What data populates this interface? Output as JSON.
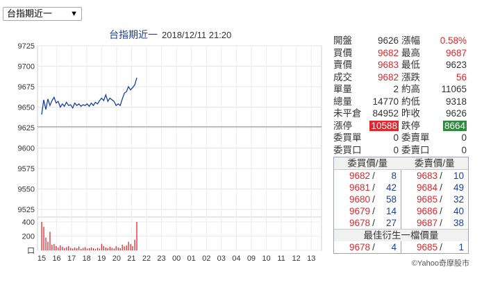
{
  "selector": {
    "value": "台指期近一",
    "arrow": "▼"
  },
  "chart_data": {
    "type": "line",
    "title": "台指期近一",
    "timestamp": "2018/12/11 21:20",
    "y_ticks": [
      "9725",
      "9700",
      "9675",
      "9650",
      "9625",
      "9600",
      "9575",
      "9550",
      "9525"
    ],
    "ylim": [
      9525,
      9725
    ],
    "reference_line": 9626,
    "volume_ticks": [
      "400",
      "200",
      "口"
    ],
    "volume_ylim": [
      0,
      400
    ],
    "x_ticks": [
      "15",
      "16",
      "17",
      "18",
      "19",
      "20",
      "21",
      "22",
      "23",
      "00",
      "01",
      "02",
      "03",
      "04",
      "09",
      "10",
      "11",
      "12",
      "13"
    ],
    "price_series": [
      [
        0,
        9641
      ],
      [
        1,
        9659
      ],
      [
        2,
        9647
      ],
      [
        3,
        9660
      ],
      [
        4,
        9652
      ],
      [
        5,
        9658
      ],
      [
        6,
        9662
      ],
      [
        7,
        9655
      ],
      [
        8,
        9657
      ],
      [
        9,
        9650
      ],
      [
        10,
        9654
      ],
      [
        11,
        9651
      ],
      [
        12,
        9656
      ],
      [
        13,
        9652
      ],
      [
        14,
        9653
      ],
      [
        15,
        9649
      ],
      [
        16,
        9655
      ],
      [
        17,
        9652
      ],
      [
        18,
        9654
      ],
      [
        19,
        9651
      ],
      [
        20,
        9653
      ],
      [
        21,
        9652
      ],
      [
        22,
        9654
      ],
      [
        23,
        9651
      ],
      [
        24,
        9655
      ],
      [
        25,
        9652
      ],
      [
        26,
        9656
      ],
      [
        27,
        9654
      ],
      [
        28,
        9658
      ],
      [
        29,
        9661
      ],
      [
        30,
        9658
      ],
      [
        31,
        9665
      ],
      [
        32,
        9657
      ],
      [
        33,
        9661
      ],
      [
        34,
        9659
      ],
      [
        35,
        9657
      ],
      [
        36,
        9652
      ],
      [
        37,
        9654
      ],
      [
        38,
        9652
      ],
      [
        39,
        9660
      ],
      [
        40,
        9667
      ],
      [
        41,
        9669
      ],
      [
        42,
        9675
      ],
      [
        43,
        9671
      ],
      [
        44,
        9674
      ],
      [
        45,
        9677
      ],
      [
        46,
        9686
      ]
    ],
    "volume_series": [
      420,
      330,
      180,
      120,
      260,
      80,
      90,
      60,
      40,
      70,
      50,
      30,
      45,
      60,
      35,
      25,
      40,
      30,
      55,
      20,
      35,
      45,
      25,
      30,
      40,
      30,
      20,
      35,
      25,
      90,
      60,
      40,
      30,
      50,
      35,
      25,
      60,
      40,
      30,
      80,
      55,
      70,
      120,
      90,
      60,
      150,
      410
    ]
  },
  "quote": {
    "open_label": "開盤",
    "open_value": "9626",
    "chg_pct_label": "漲幅",
    "chg_pct_value": "0.58%",
    "bid_label": "買價",
    "bid_value": "9682",
    "high_label": "最高",
    "high_value": "9687",
    "ask_label": "賣價",
    "ask_value": "9683",
    "low_label": "最低",
    "low_value": "9623",
    "last_label": "成交",
    "last_value": "9682",
    "chg_label": "漲跌",
    "chg_value": "56",
    "unit_vol_label": "單量",
    "unit_vol_value": "2",
    "est_high_label": "約高",
    "est_high_value": "11065",
    "total_vol_label": "總量",
    "total_vol_value": "14770",
    "est_low_label": "約低",
    "est_low_value": "9318",
    "oi_label": "未平倉",
    "oi_value": "84952",
    "prev_close_label": "昨收",
    "prev_close_value": "9626",
    "limit_up_label": "漲停",
    "limit_up_value": "10588",
    "limit_down_label": "跌停",
    "limit_down_value": "8664",
    "bid_orders_label": "委買單",
    "bid_orders_value": "0",
    "ask_orders_label": "委賣單",
    "ask_orders_value": "0",
    "bid_qty_label": "委買口",
    "bid_qty_value": "0",
    "ask_qty_label": "委賣口",
    "ask_qty_value": "0"
  },
  "book": {
    "bid_header": "委買價/量",
    "ask_header": "委賣價/量",
    "rows": [
      {
        "bid_price": "9682",
        "bid_qty": "8",
        "ask_price": "9683",
        "ask_qty": "10"
      },
      {
        "bid_price": "9681",
        "bid_qty": "42",
        "ask_price": "9684",
        "ask_qty": "49"
      },
      {
        "bid_price": "9680",
        "bid_qty": "58",
        "ask_price": "9685",
        "ask_qty": "32"
      },
      {
        "bid_price": "9679",
        "bid_qty": "14",
        "ask_price": "9686",
        "ask_qty": "40"
      },
      {
        "bid_price": "9678",
        "bid_qty": "27",
        "ask_price": "9687",
        "ask_qty": "38"
      }
    ],
    "best_header": "最佳衍生一檔價量",
    "best": {
      "bid_price": "9678",
      "bid_qty": "4",
      "ask_price": "9685",
      "ask_qty": "1"
    },
    "sep": "/"
  },
  "copyright": "©Yahoo奇摩股市",
  "colors": {
    "price_line": "#1a3fa3",
    "volume": "#e0272d",
    "ref_line": "#999999"
  }
}
